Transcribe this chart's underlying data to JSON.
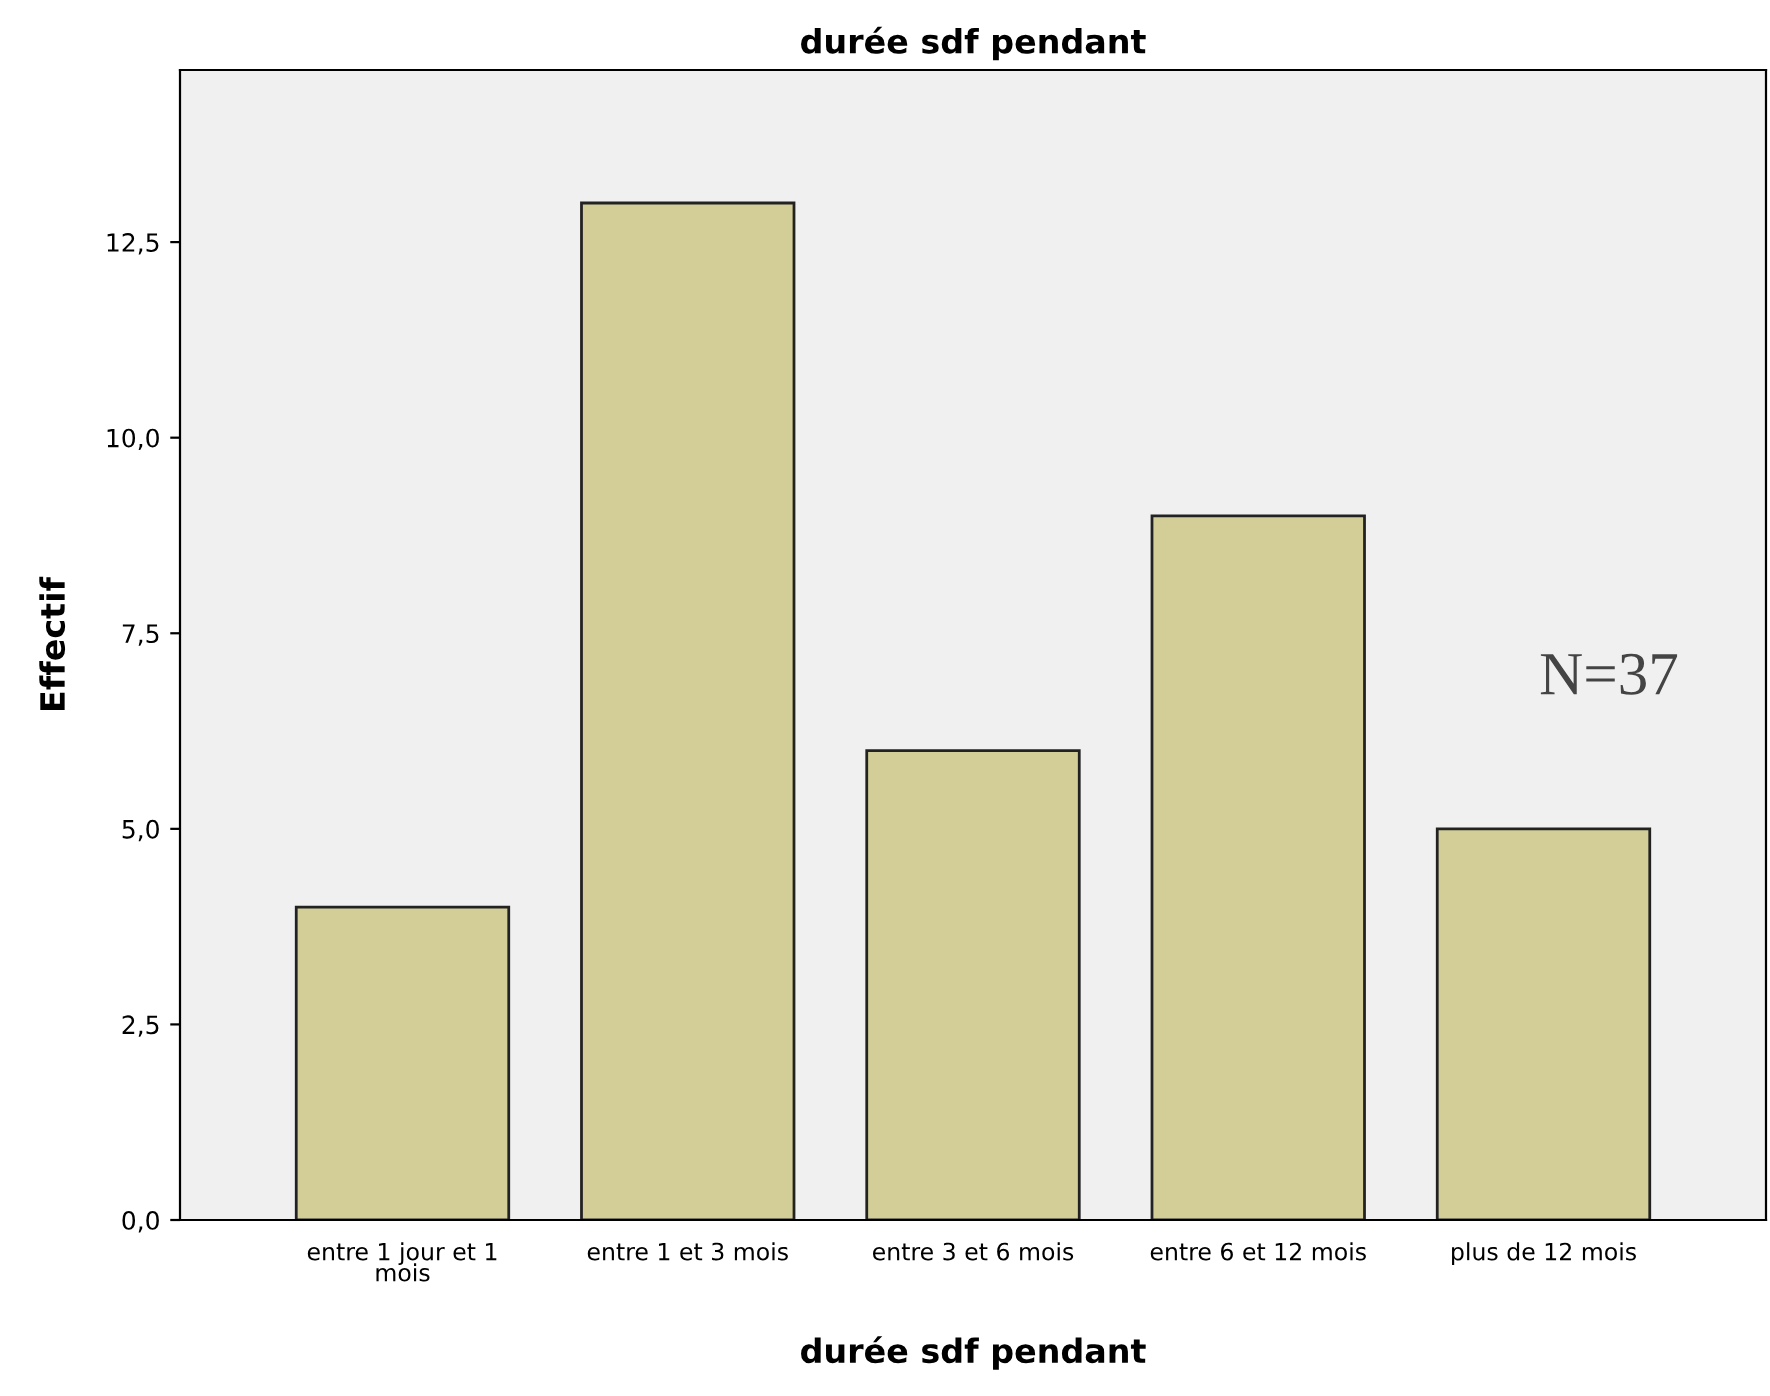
{
  "chart_data": {
    "type": "bar",
    "title": "durée sdf pendant",
    "xlabel": "durée sdf pendant",
    "ylabel": "Effectif",
    "categories": [
      "entre 1 jour et 1 mois",
      "entre 1 et 3 mois",
      "entre 3 et 6 mois",
      "entre 6 et 12 mois",
      "plus de 12 mois"
    ],
    "values": [
      4,
      13,
      6,
      9,
      5
    ],
    "color": "#d3ce97",
    "ylim": [
      0,
      14.7
    ],
    "yticks": [
      {
        "value": 0,
        "label": "0,0"
      },
      {
        "value": 2.5,
        "label": "2,5"
      },
      {
        "value": 5,
        "label": "5,0"
      },
      {
        "value": 7.5,
        "label": "7,5"
      },
      {
        "value": 10,
        "label": "10,0"
      },
      {
        "value": 12.5,
        "label": "12,5"
      }
    ],
    "annotations": [
      "N=37"
    ],
    "grid": false,
    "legend": false
  }
}
